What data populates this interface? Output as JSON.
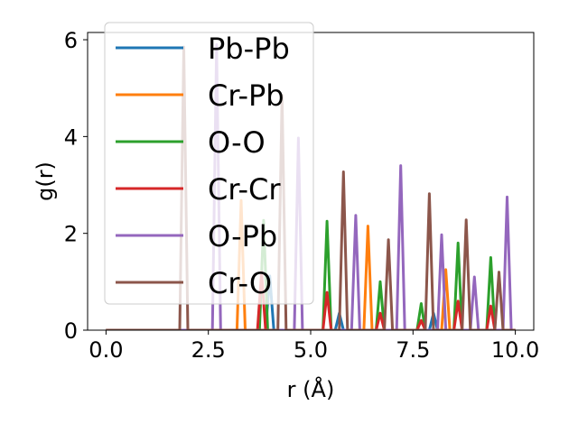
{
  "chart_data": {
    "type": "line",
    "xlabel": "r (Å)",
    "ylabel": "g(r)",
    "xlim": [
      -0.45,
      10.45
    ],
    "ylim": [
      0,
      6.15
    ],
    "xticks": [
      "0.0",
      "2.5",
      "5.0",
      "7.5",
      "10.0"
    ],
    "yticks": [
      "0",
      "2",
      "4",
      "6"
    ],
    "grid": false,
    "legend_position": "top-left",
    "series": [
      {
        "name": "Pb-Pb",
        "color": "#1f77b4",
        "peaks": [
          [
            4.0,
            1.12
          ],
          [
            5.7,
            0.35
          ],
          [
            8.0,
            0.35
          ]
        ]
      },
      {
        "name": "Cr-Pb",
        "color": "#ff7f0e",
        "peaks": [
          [
            3.3,
            2.68
          ],
          [
            6.4,
            2.15
          ],
          [
            8.3,
            1.25
          ]
        ]
      },
      {
        "name": "O-O",
        "color": "#2ca02c",
        "peaks": [
          [
            3.85,
            2.27
          ],
          [
            5.4,
            2.25
          ],
          [
            6.7,
            1.0
          ],
          [
            7.7,
            0.55
          ],
          [
            8.6,
            1.8
          ],
          [
            9.4,
            1.5
          ]
        ]
      },
      {
        "name": "Cr-Cr",
        "color": "#d62728",
        "peaks": [
          [
            3.8,
            1.2
          ],
          [
            5.4,
            0.78
          ],
          [
            6.7,
            0.35
          ],
          [
            7.7,
            0.2
          ],
          [
            8.6,
            0.6
          ],
          [
            9.4,
            0.5
          ]
        ]
      },
      {
        "name": "O-Pb",
        "color": "#9467bd",
        "peaks": [
          [
            2.7,
            5.9
          ],
          [
            4.7,
            3.97
          ],
          [
            6.1,
            2.37
          ],
          [
            7.2,
            3.4
          ],
          [
            8.2,
            1.97
          ],
          [
            9.0,
            1.1
          ],
          [
            9.8,
            2.75
          ]
        ]
      },
      {
        "name": "Cr-O",
        "color": "#8c564b",
        "peaks": [
          [
            1.9,
            5.85
          ],
          [
            4.3,
            4.85
          ],
          [
            5.8,
            3.27
          ],
          [
            6.9,
            1.87
          ],
          [
            7.9,
            2.82
          ],
          [
            8.8,
            2.28
          ],
          [
            9.6,
            1.2
          ]
        ]
      }
    ]
  }
}
